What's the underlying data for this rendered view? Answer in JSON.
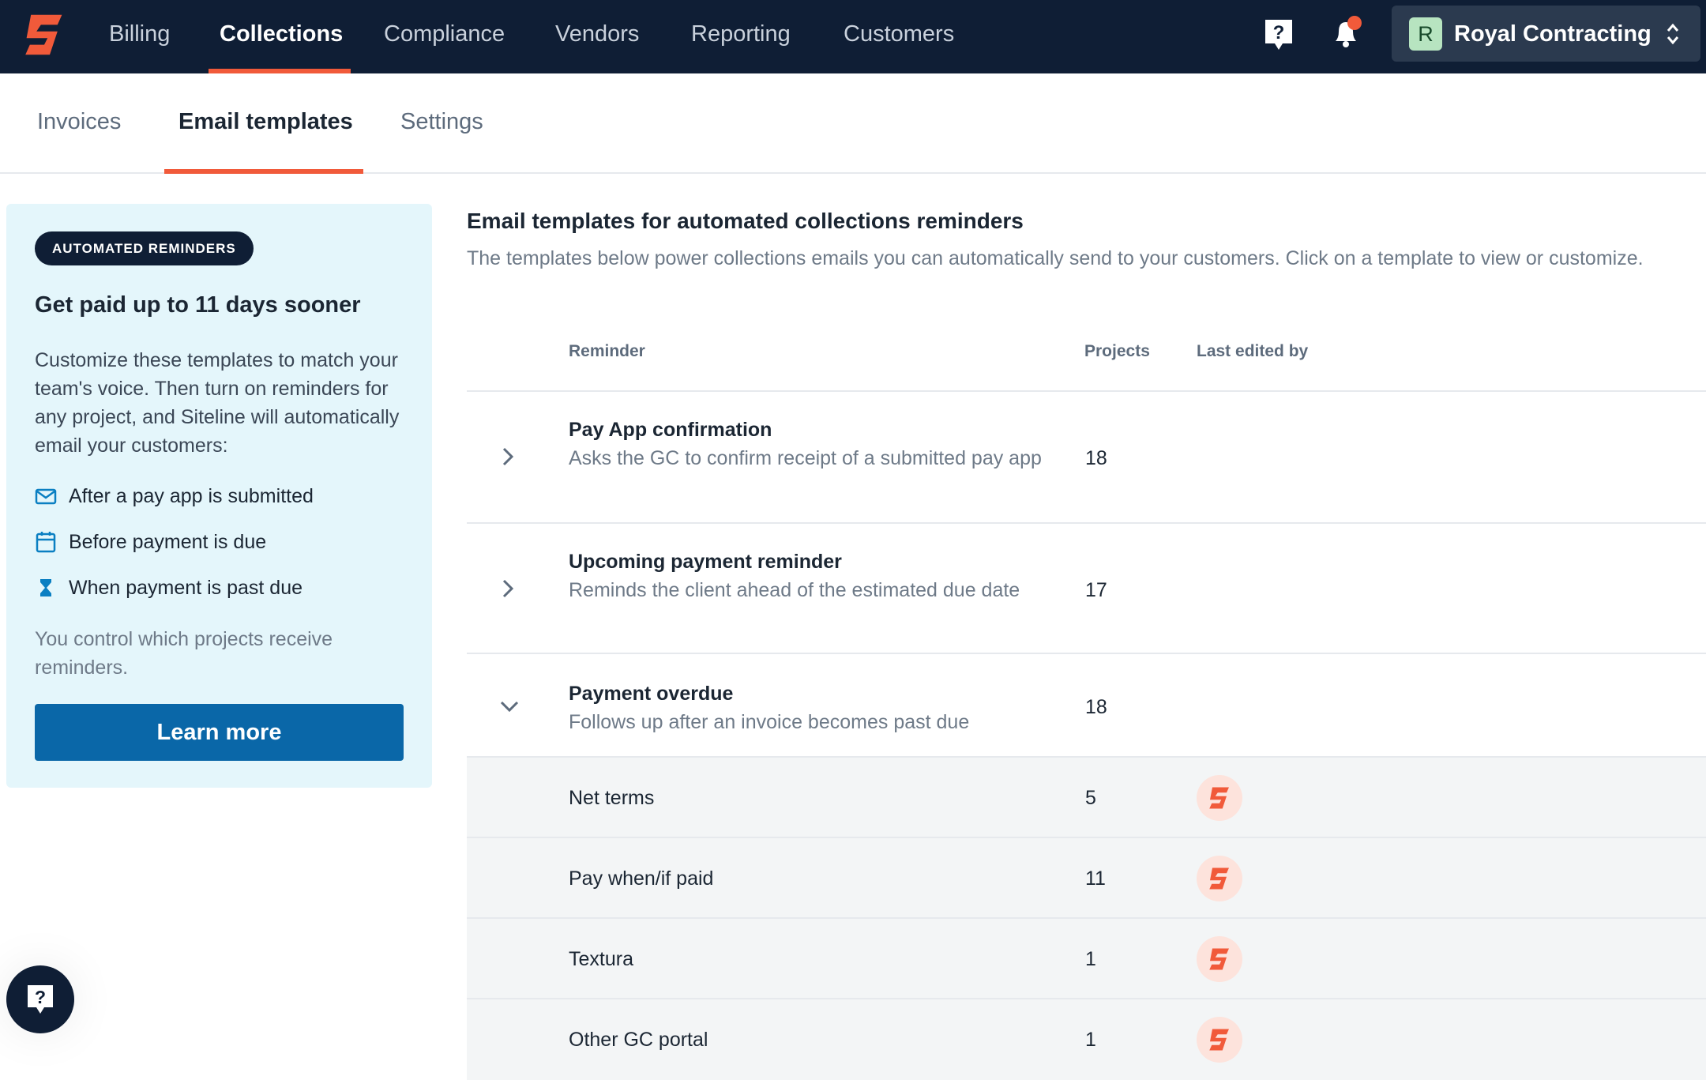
{
  "nav": {
    "items": [
      "Billing",
      "Collections",
      "Compliance",
      "Vendors",
      "Reporting",
      "Customers"
    ],
    "active": "Collections",
    "org_initial": "R",
    "org_name": "Royal Contracting"
  },
  "tabs": {
    "items": [
      "Invoices",
      "Email templates",
      "Settings"
    ],
    "active": "Email templates"
  },
  "card": {
    "badge": "AUTOMATED REMINDERS",
    "heading": "Get paid up to 11 days sooner",
    "body": "Customize these templates to match your team's voice. Then turn on reminders for any project, and Siteline will automatically email your customers:",
    "list": [
      "After a pay app is submitted",
      "Before payment is due",
      "When payment is past due"
    ],
    "note": "You control which projects receive reminders.",
    "button": "Learn more"
  },
  "content": {
    "title": "Email templates for automated collections reminders",
    "description": "The templates below power collections emails you can automatically send to your customers. Click on a template to view or customize.",
    "columns": [
      "Reminder",
      "Projects",
      "Last edited by"
    ],
    "rows": [
      {
        "title": "Pay App confirmation",
        "description": "Asks the GC to confirm receipt of a submitted pay app",
        "projects": "18"
      },
      {
        "title": "Upcoming payment reminder",
        "description": "Reminds the client ahead of the estimated due date",
        "projects": "17"
      },
      {
        "title": "Payment overdue",
        "description": "Follows up after an invoice becomes past due",
        "projects": "18",
        "subrows": [
          {
            "name": "Net terms",
            "projects": "5"
          },
          {
            "name": "Pay when/if paid",
            "projects": "11"
          },
          {
            "name": "Textura",
            "projects": "1"
          },
          {
            "name": "Other GC portal",
            "projects": "1"
          }
        ]
      }
    ]
  }
}
